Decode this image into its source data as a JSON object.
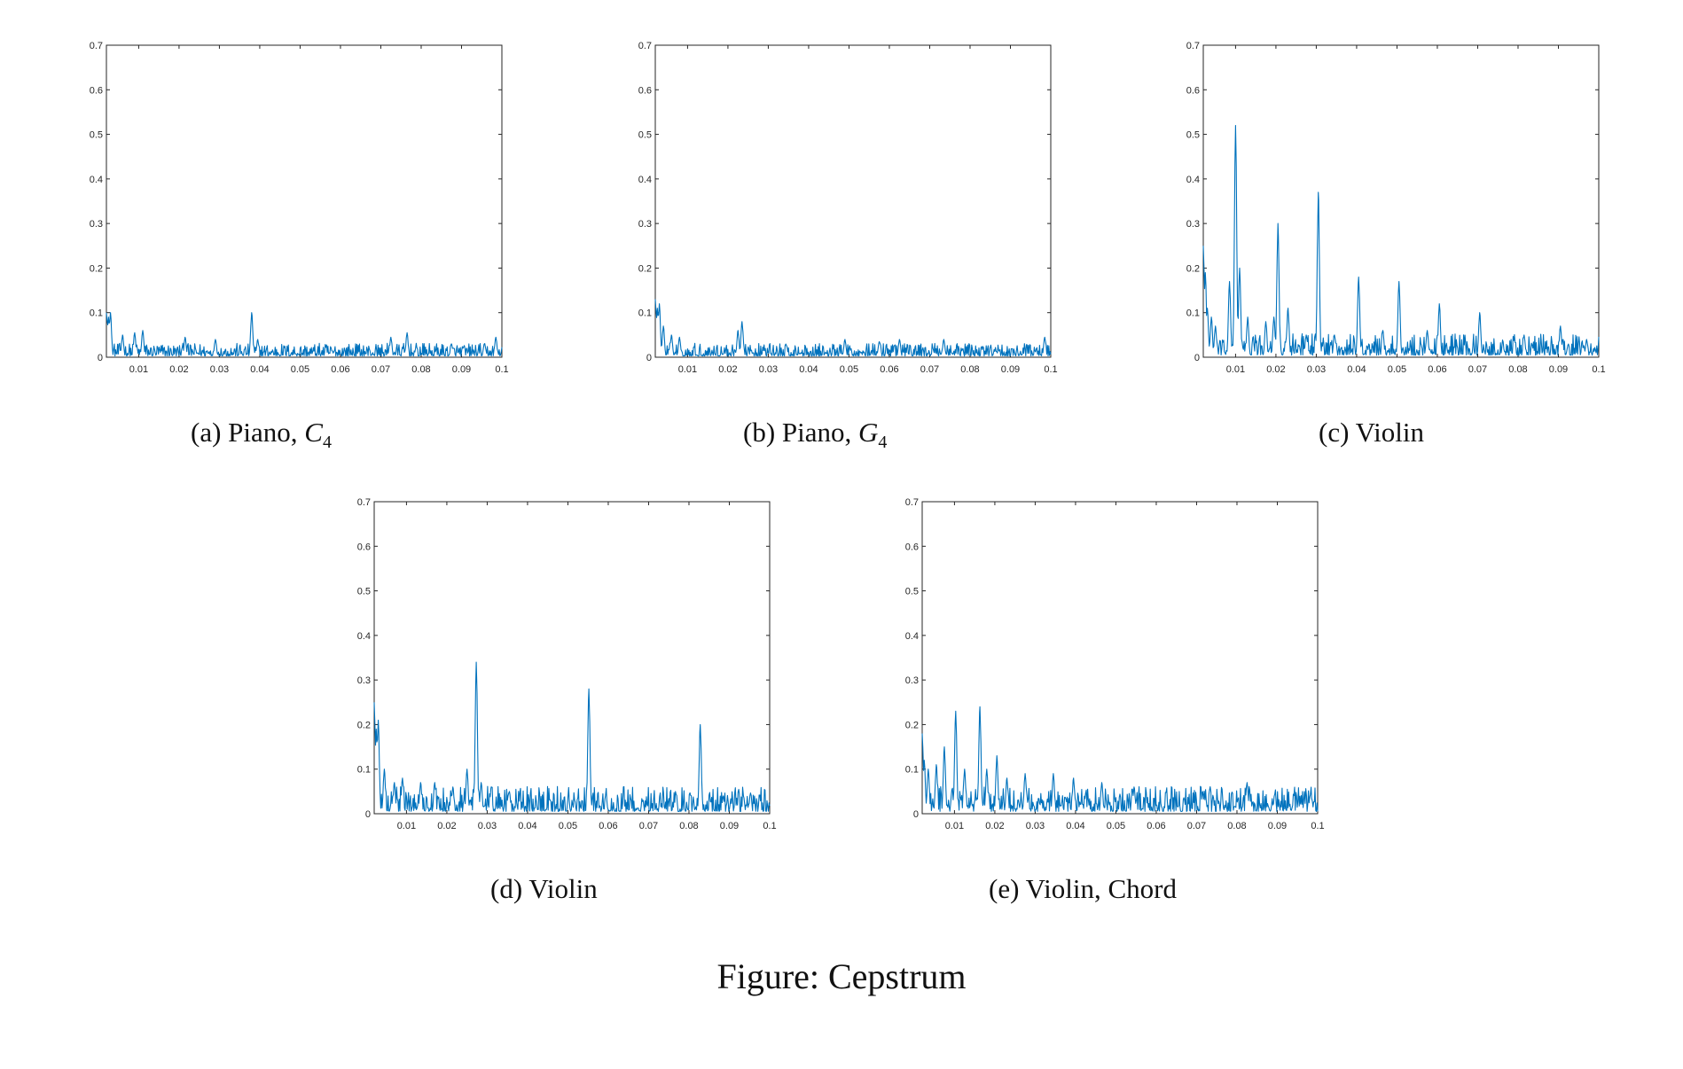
{
  "figure_caption": "Figure: Cepstrum",
  "panels": [
    {
      "id": "a",
      "label": "(a) Piano,",
      "math": "C",
      "sub": "4"
    },
    {
      "id": "b",
      "label": "(b) Piano,",
      "math": "G",
      "sub": "4"
    },
    {
      "id": "c",
      "label": "(c) Violin",
      "math": "",
      "sub": ""
    },
    {
      "id": "d",
      "label": "(d) Violin",
      "math": "",
      "sub": ""
    },
    {
      "id": "e",
      "label": "(e) Violin, Chord",
      "math": "",
      "sub": ""
    }
  ],
  "colors": {
    "line": "#0072bd",
    "axis": "#262626"
  },
  "chart_data": [
    {
      "type": "line",
      "panel": "a",
      "xlim": [
        0.002,
        0.1
      ],
      "ylim": [
        0,
        0.7
      ],
      "xticks": [
        "0.01",
        "0.02",
        "0.03",
        "0.04",
        "0.05",
        "0.06",
        "0.07",
        "0.08",
        "0.09",
        "0.1"
      ],
      "yticks": [
        "0",
        "0.1",
        "0.2",
        "0.3",
        "0.4",
        "0.5",
        "0.6",
        "0.7"
      ],
      "noise_level": 0.018,
      "peaks": [
        [
          0.002,
          0.1
        ],
        [
          0.0025,
          0.09
        ],
        [
          0.003,
          0.1
        ],
        [
          0.006,
          0.05
        ],
        [
          0.009,
          0.055
        ],
        [
          0.011,
          0.06
        ],
        [
          0.0215,
          0.045
        ],
        [
          0.029,
          0.04
        ],
        [
          0.038,
          0.1
        ],
        [
          0.0395,
          0.04
        ],
        [
          0.0725,
          0.045
        ],
        [
          0.0765,
          0.055
        ],
        [
          0.0875,
          0.03
        ],
        [
          0.0985,
          0.045
        ]
      ]
    },
    {
      "type": "line",
      "panel": "b",
      "xlim": [
        0.002,
        0.1
      ],
      "ylim": [
        0,
        0.7
      ],
      "xticks": [
        "0.01",
        "0.02",
        "0.03",
        "0.04",
        "0.05",
        "0.06",
        "0.07",
        "0.08",
        "0.09",
        "0.1"
      ],
      "yticks": [
        "0",
        "0.1",
        "0.2",
        "0.3",
        "0.4",
        "0.5",
        "0.6",
        "0.7"
      ],
      "noise_level": 0.018,
      "peaks": [
        [
          0.002,
          0.13
        ],
        [
          0.0025,
          0.11
        ],
        [
          0.003,
          0.12
        ],
        [
          0.004,
          0.07
        ],
        [
          0.006,
          0.05
        ],
        [
          0.008,
          0.045
        ],
        [
          0.0225,
          0.06
        ],
        [
          0.0235,
          0.08
        ],
        [
          0.049,
          0.04
        ],
        [
          0.0575,
          0.035
        ],
        [
          0.0625,
          0.04
        ],
        [
          0.0735,
          0.04
        ],
        [
          0.0985,
          0.045
        ]
      ]
    },
    {
      "type": "line",
      "panel": "c",
      "xlim": [
        0.002,
        0.1
      ],
      "ylim": [
        0,
        0.7
      ],
      "xticks": [
        "0.01",
        "0.02",
        "0.03",
        "0.04",
        "0.05",
        "0.06",
        "0.07",
        "0.08",
        "0.09",
        "0.1"
      ],
      "yticks": [
        "0",
        "0.1",
        "0.2",
        "0.3",
        "0.4",
        "0.5",
        "0.6",
        "0.7"
      ],
      "noise_level": 0.03,
      "peaks": [
        [
          0.002,
          0.25
        ],
        [
          0.0025,
          0.19
        ],
        [
          0.003,
          0.11
        ],
        [
          0.004,
          0.09
        ],
        [
          0.005,
          0.07
        ],
        [
          0.0085,
          0.17
        ],
        [
          0.01,
          0.52
        ],
        [
          0.011,
          0.2
        ],
        [
          0.013,
          0.09
        ],
        [
          0.0175,
          0.08
        ],
        [
          0.0195,
          0.09
        ],
        [
          0.0205,
          0.3
        ],
        [
          0.023,
          0.11
        ],
        [
          0.0275,
          0.05
        ],
        [
          0.0305,
          0.37
        ],
        [
          0.0345,
          0.05
        ],
        [
          0.0405,
          0.18
        ],
        [
          0.0465,
          0.06
        ],
        [
          0.0505,
          0.17
        ],
        [
          0.0575,
          0.06
        ],
        [
          0.0605,
          0.12
        ],
        [
          0.0705,
          0.1
        ],
        [
          0.0815,
          0.05
        ],
        [
          0.0905,
          0.07
        ],
        [
          0.097,
          0.04
        ]
      ]
    },
    {
      "type": "line",
      "panel": "d",
      "xlim": [
        0.002,
        0.1
      ],
      "ylim": [
        0,
        0.7
      ],
      "xticks": [
        "0.01",
        "0.02",
        "0.03",
        "0.04",
        "0.05",
        "0.06",
        "0.07",
        "0.08",
        "0.09",
        "0.1"
      ],
      "yticks": [
        "0",
        "0.1",
        "0.2",
        "0.3",
        "0.4",
        "0.5",
        "0.6",
        "0.7"
      ],
      "noise_level": 0.035,
      "peaks": [
        [
          0.002,
          0.25
        ],
        [
          0.0025,
          0.19
        ],
        [
          0.003,
          0.21
        ],
        [
          0.0045,
          0.1
        ],
        [
          0.007,
          0.07
        ],
        [
          0.009,
          0.08
        ],
        [
          0.0135,
          0.07
        ],
        [
          0.017,
          0.07
        ],
        [
          0.0215,
          0.06
        ],
        [
          0.025,
          0.1
        ],
        [
          0.0273,
          0.34
        ],
        [
          0.0285,
          0.07
        ],
        [
          0.031,
          0.06
        ],
        [
          0.0355,
          0.05
        ],
        [
          0.0552,
          0.28
        ],
        [
          0.0828,
          0.2
        ],
        [
          0.0885,
          0.04
        ],
        [
          0.0935,
          0.04
        ]
      ]
    },
    {
      "type": "line",
      "panel": "e",
      "xlim": [
        0.002,
        0.1
      ],
      "ylim": [
        0,
        0.7
      ],
      "xticks": [
        "0.01",
        "0.02",
        "0.03",
        "0.04",
        "0.05",
        "0.06",
        "0.07",
        "0.08",
        "0.09",
        "0.1"
      ],
      "yticks": [
        "0",
        "0.1",
        "0.2",
        "0.3",
        "0.4",
        "0.5",
        "0.6",
        "0.7"
      ],
      "noise_level": 0.035,
      "peaks": [
        [
          0.002,
          0.18
        ],
        [
          0.0025,
          0.12
        ],
        [
          0.0035,
          0.1
        ],
        [
          0.0055,
          0.11
        ],
        [
          0.0075,
          0.15
        ],
        [
          0.0103,
          0.23
        ],
        [
          0.0125,
          0.1
        ],
        [
          0.0163,
          0.24
        ],
        [
          0.018,
          0.1
        ],
        [
          0.0205,
          0.13
        ],
        [
          0.023,
          0.08
        ],
        [
          0.0275,
          0.09
        ],
        [
          0.0345,
          0.09
        ],
        [
          0.0395,
          0.08
        ],
        [
          0.0465,
          0.07
        ],
        [
          0.0545,
          0.06
        ],
        [
          0.0715,
          0.05
        ],
        [
          0.0825,
          0.07
        ],
        [
          0.0985,
          0.035
        ]
      ]
    }
  ]
}
